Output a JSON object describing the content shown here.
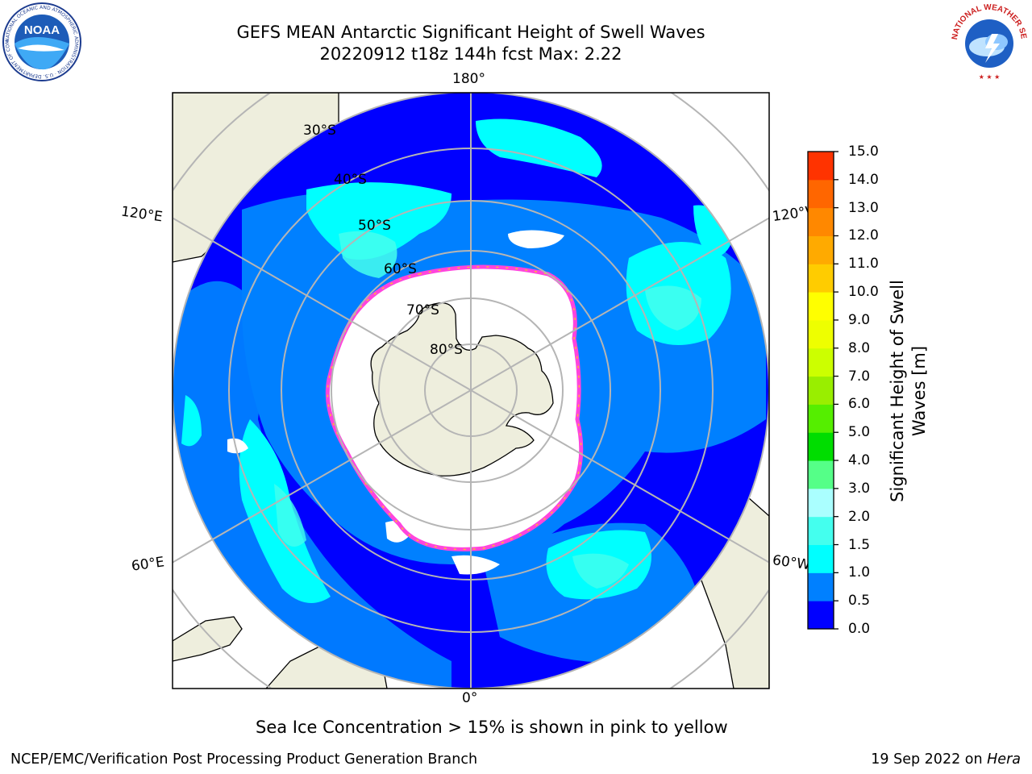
{
  "header": {
    "title_line1": "GEFS MEAN Antarctic Significant Height of Swell Waves",
    "title_line2": "20220912 t18z 144h fcst   Max: 2.22"
  },
  "logos": {
    "left": "NOAA",
    "left_ring_text": "NATIONAL OCEANIC AND ATMOSPHERIC ADMINISTRATION · U.S. DEPARTMENT OF COMMERCE",
    "right_ring_text": "NATIONAL WEATHER SERVICE"
  },
  "map": {
    "projection": "south-polar-stereographic",
    "lon_labels": {
      "top": "180°",
      "bottom": "0°",
      "upper_left": "120°E",
      "lower_left": "60°E",
      "upper_right": "120°W",
      "lower_right": "60°W"
    },
    "lat_labels": [
      "30°S",
      "40°S",
      "50°S",
      "60°S",
      "70°S",
      "80°S"
    ],
    "colors": {
      "land": "#eeeedd",
      "ice_free_open": "#ffffff",
      "ice_edge": "#ff44dd",
      "graticule": "#b5b5b5",
      "swell_0_0.5": "#0000ff",
      "swell_0.5_1.0": "#0080ff",
      "swell_1.0_1.5": "#00ffff",
      "swell_1.5_2.0": "#44ffee"
    }
  },
  "colorbar": {
    "title": "Significant Height of Swell Waves [m]",
    "ticks": [
      "0.0",
      "0.5",
      "1.0",
      "1.5",
      "2.0",
      "3.0",
      "4.0",
      "5.0",
      "6.0",
      "7.0",
      "8.0",
      "9.0",
      "10.0",
      "11.0",
      "12.0",
      "13.0",
      "14.0",
      "15.0"
    ],
    "colors": [
      "#0000ff",
      "#0080ff",
      "#00ffff",
      "#44ffee",
      "#aaffff",
      "#55ff88",
      "#00dd00",
      "#55ee00",
      "#99ee00",
      "#ccff00",
      "#eeff00",
      "#ffff00",
      "#ffcc00",
      "#ffaa00",
      "#ff8800",
      "#ff6600",
      "#ff3300",
      "#ff0000"
    ]
  },
  "subtitle": "Sea Ice Concentration > 15% is shown in pink to yellow",
  "footer": {
    "left": "NCEP/EMC/Verification Post Processing Product Generation Branch",
    "right_date": "19 Sep 2022 on ",
    "right_host": "Hera"
  }
}
